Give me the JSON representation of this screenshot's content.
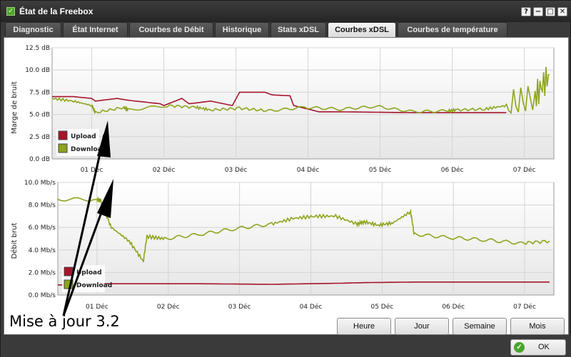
{
  "window": {
    "title": "État de la Freebox"
  },
  "titlebar_buttons": {
    "help": "?",
    "minimize": "−",
    "maximize": "□",
    "close": "✕"
  },
  "tabs": [
    {
      "label": "Diagnostic",
      "active": false
    },
    {
      "label": "État Internet",
      "active": false
    },
    {
      "label": "Courbes de Débit",
      "active": false
    },
    {
      "label": "Historique",
      "active": false
    },
    {
      "label": "Stats xDSL",
      "active": false
    },
    {
      "label": "Courbes xDSL",
      "active": true
    },
    {
      "label": "Courbes de température",
      "active": false
    }
  ],
  "period_buttons": {
    "hour": "Heure",
    "day": "Jour",
    "week": "Semaine",
    "month": "Mois"
  },
  "ok_button": {
    "label": "OK"
  },
  "annotation": {
    "text": "Mise à jour 3.2"
  },
  "colors": {
    "upload": "#a5152b",
    "download": "#8ca51c",
    "accent": "#4ea82a"
  },
  "chart_data": [
    {
      "type": "line",
      "ylabel": "Marge de bruit",
      "y_ticks": [
        "0.0 dB",
        "2.5 dB",
        "5.0 dB",
        "7.5 dB",
        "10.0 dB",
        "12.5 dB"
      ],
      "ylim": [
        0,
        12.5
      ],
      "x_ticks": [
        "01 Déc",
        "02 Déc",
        "03 Déc",
        "04 Déc",
        "05 Déc",
        "06 Déc",
        "07 Déc"
      ],
      "grid": true,
      "legend": "bottom-left",
      "series": [
        {
          "name": "Upload",
          "x": [
            0.0,
            0.3,
            0.55,
            0.6,
            0.9,
            1.05,
            1.5,
            1.55,
            1.8,
            1.9,
            2.2,
            2.5,
            2.6,
            2.95,
            3.05,
            3.3,
            3.35,
            3.7,
            4.0,
            5.0,
            5.5,
            6.0,
            6.3
          ],
          "values": [
            7.0,
            7.0,
            6.8,
            6.5,
            6.8,
            6.6,
            6.2,
            6.0,
            6.8,
            6.2,
            6.5,
            6.0,
            7.5,
            7.5,
            7.2,
            7.1,
            6.0,
            5.3,
            5.3,
            5.2,
            5.2,
            5.2,
            5.2
          ]
        },
        {
          "name": "Download",
          "x": [
            0.0,
            0.3,
            0.55,
            0.6,
            1.0,
            1.05,
            1.6,
            2.0,
            2.2,
            2.6,
            3.0,
            3.5,
            4.0,
            4.5,
            5.0,
            5.5,
            5.6,
            6.0,
            6.3,
            6.7,
            6.9
          ],
          "values": [
            6.8,
            6.5,
            6.0,
            5.2,
            5.8,
            5.5,
            6.0,
            5.8,
            5.5,
            5.7,
            5.4,
            5.8,
            5.6,
            5.9,
            5.3,
            5.4,
            5.5,
            5.6,
            6.0,
            7.0,
            9.5
          ]
        }
      ]
    },
    {
      "type": "line",
      "ylabel": "Débit brut",
      "y_ticks": [
        "0.0 Mb/s",
        "2.0 Mb/s",
        "4.0 Mb/s",
        "6.0 Mb/s",
        "8.0 Mb/s",
        "10.0 Mb/s"
      ],
      "ylim": [
        0,
        10
      ],
      "x_ticks": [
        "01 Déc",
        "02 Déc",
        "03 Déc",
        "04 Déc",
        "05 Déc",
        "06 Déc",
        "07 Déc"
      ],
      "grid": true,
      "legend": "bottom-left",
      "series": [
        {
          "name": "Upload",
          "x": [
            0.0,
            0.6,
            0.62,
            1.0,
            1.6,
            2.0,
            3.0,
            4.0,
            4.3,
            5.0,
            6.0,
            6.9
          ],
          "values": [
            0.9,
            0.9,
            1.0,
            1.0,
            1.0,
            1.0,
            0.95,
            1.05,
            1.1,
            1.15,
            1.15,
            1.15
          ]
        },
        {
          "name": "Download",
          "x": [
            0.0,
            0.55,
            0.6,
            0.75,
            1.0,
            1.2,
            1.25,
            1.5,
            2.0,
            2.5,
            3.0,
            3.3,
            3.6,
            3.9,
            4.2,
            4.3,
            4.5,
            4.7,
            4.95,
            5.0,
            5.5,
            6.0,
            6.5,
            6.9
          ],
          "values": [
            8.5,
            8.5,
            8.4,
            6.0,
            4.8,
            3.0,
            5.2,
            5.0,
            5.4,
            5.9,
            6.3,
            6.8,
            7.0,
            7.0,
            6.3,
            6.5,
            6.2,
            6.4,
            7.4,
            5.4,
            5.1,
            4.9,
            4.6,
            4.8
          ]
        }
      ]
    }
  ]
}
